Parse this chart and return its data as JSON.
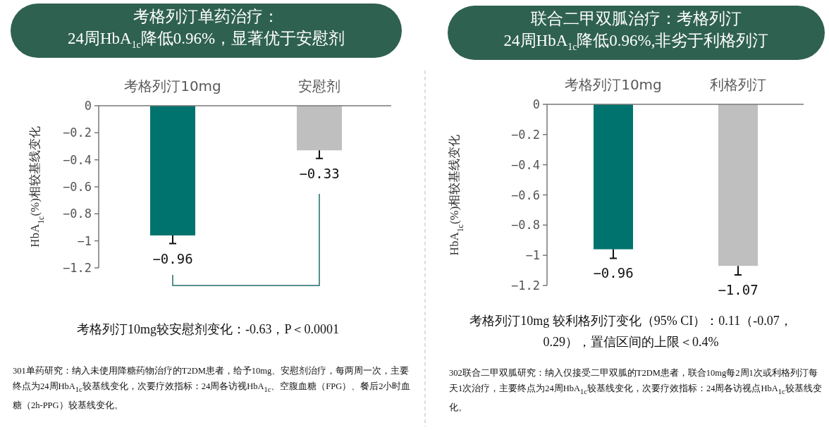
{
  "chart_data": [
    {
      "type": "bar",
      "title": "考格列汀单药治疗：\n24周HbA$_{1c}$降低0.96%，显著优于安慰剂",
      "ylabel": "HbA$_{1c}$(%)相较基线变化",
      "categories": [
        "考格列汀10mg",
        "安慰剂"
      ],
      "values": [
        -0.96,
        -0.33
      ],
      "colors": [
        "#00736e",
        "#bfbfbf"
      ],
      "errors": [
        [
          -1.02,
          -0.96
        ],
        [
          -0.39,
          -0.33
        ]
      ],
      "data_labels": true,
      "ylim": [
        -1.2,
        0
      ],
      "yticks": [
        0,
        -0.2,
        -0.4,
        -0.6,
        -0.8,
        -1,
        -1.2
      ],
      "annotations": [
        "考格列汀10mg较安慰剂变化：-0.63，P＜0.0001",
        "301单药研究：纳入未使用降糖药物治疗的T2DM患者，给予10mg、安慰剂治疗，每两周一次，主要终点为24周HbA$_{1c}$较基线变化，次要疗效指标：24周各访视HbA$_{1c}$、空腹血糖（FPG）、餐后2小时血糖（2h-PPG）较基线变化。"
      ]
    },
    {
      "type": "bar",
      "title": "联合二甲双胍治疗：考格列汀\n24周HbA$_{1c}$降低0.96%,非劣于利格列汀",
      "ylabel": "HbA$_{1c}$(%)相较基线变化",
      "categories": [
        "考格列汀10mg",
        "利格列汀"
      ],
      "values": [
        -0.96,
        -1.07
      ],
      "colors": [
        "#00736e",
        "#bfbfbf"
      ],
      "errors": [
        [
          -1.02,
          -0.96
        ],
        [
          -1.13,
          -1.07
        ]
      ],
      "data_labels": true,
      "ylim": [
        -1.2,
        0
      ],
      "yticks": [
        0,
        -0.2,
        -0.4,
        -0.6,
        -0.8,
        -1,
        -1.2
      ],
      "annotations": [
        "考格列汀10mg 较利格列汀变化（95% CI）：0.11（-0.07，0.29），置信区间的上限＜0.4%",
        "302联合二甲双胍研究：纳入仅接受二甲双胍的T2DM患者，联合10mg每2周1次或利格列汀每天1次治疗，主要终点为24周HbA$_{1c}$较基线变化，次要疗效指标：24周各访视点HbA$_{1c}$较基线变化。"
      ]
    }
  ]
}
